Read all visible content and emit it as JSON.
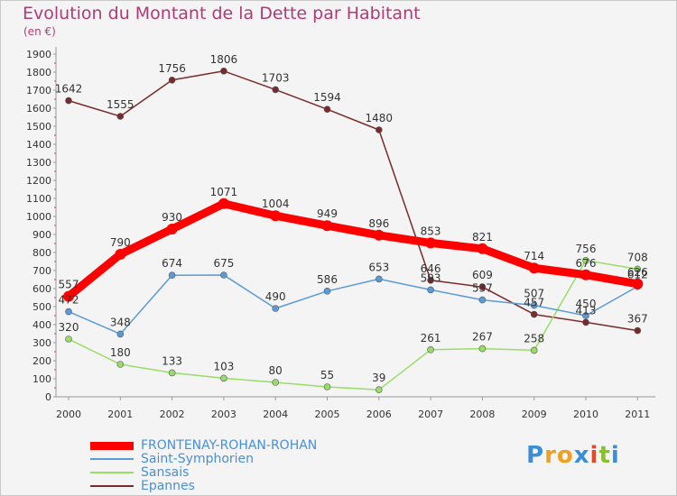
{
  "title": "Evolution du Montant de la Dette par Habitant",
  "unit_label": "(en €)",
  "brand": {
    "letters": [
      "P",
      "r",
      "o",
      "x",
      "i",
      "t",
      "i"
    ],
    "colors": [
      "#3b8fd9",
      "#f0a020",
      "#f0a020",
      "#3b8fd9",
      "#e04a2a",
      "#8ac030",
      "#3b8fd9"
    ]
  },
  "chart_data": {
    "type": "line",
    "x": [
      "2000",
      "2001",
      "2002",
      "2003",
      "2004",
      "2005",
      "2006",
      "2007",
      "2008",
      "2009",
      "2010",
      "2011"
    ],
    "ylim": [
      0,
      1900
    ],
    "yticks": [
      "0",
      "100",
      "200",
      "300",
      "400",
      "500",
      "600",
      "700",
      "800",
      "900",
      "1000",
      "1100",
      "1200",
      "1300",
      "1400",
      "1500",
      "1600",
      "1700",
      "1800",
      "1900"
    ],
    "grid": false,
    "legend_position": "bottom-left",
    "series": [
      {
        "name": "FRONTENAY-ROHAN-ROHAN",
        "color": "#ff0000",
        "values": [
          557,
          790,
          930,
          1071,
          1004,
          949,
          896,
          853,
          821,
          714,
          676,
          626
        ],
        "labels": [
          "557",
          "790",
          "930",
          "1071",
          "1004",
          "949",
          "896",
          "853",
          "821",
          "714",
          "676",
          "626"
        ]
      },
      {
        "name": "Saint-Symphorien",
        "color": "#5b9bd5",
        "values": [
          472,
          348,
          674,
          675,
          490,
          586,
          653,
          593,
          537,
          507,
          450,
          612
        ],
        "labels": [
          "472",
          "348",
          "674",
          "675",
          "490",
          "586",
          "653",
          "593",
          "537",
          "507",
          "450",
          "612"
        ]
      },
      {
        "name": "Sansais",
        "color": "#99dd66",
        "values": [
          320,
          180,
          133,
          103,
          80,
          55,
          39,
          261,
          267,
          258,
          756,
          708
        ],
        "labels": [
          "320",
          "180",
          "133",
          "103",
          "80",
          "55",
          "39",
          "261",
          "267",
          "258",
          "756",
          "708"
        ]
      },
      {
        "name": "Epannes",
        "color": "#7a2a2a",
        "values": [
          1642,
          1555,
          1756,
          1806,
          1703,
          1594,
          1480,
          646,
          609,
          457,
          413,
          367
        ],
        "labels": [
          "1642",
          "1555",
          "1756",
          "1806",
          "1703",
          "1594",
          "1480",
          "646",
          "609",
          "457",
          "413",
          "367"
        ]
      }
    ]
  }
}
